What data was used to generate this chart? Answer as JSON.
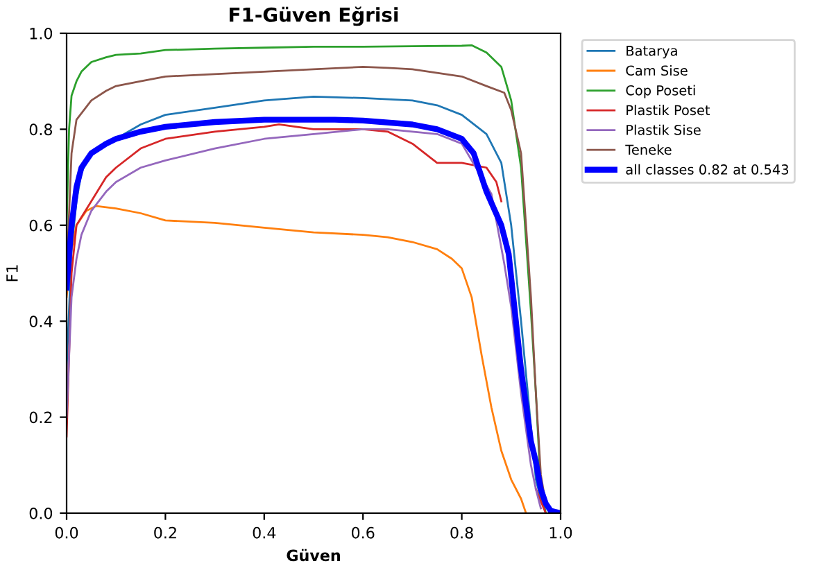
{
  "chart_data": {
    "type": "line",
    "title": "F1-Güven Eğrisi",
    "xlabel": "Güven",
    "ylabel": "F1",
    "xlim": [
      0.0,
      1.0
    ],
    "ylim": [
      0.0,
      1.0
    ],
    "xticks": [
      {
        "value": 0,
        "label": "0.0"
      },
      0.2,
      0.4,
      0.6,
      0.8,
      {
        "value": 1,
        "label": "1.0"
      }
    ],
    "yticks": [
      {
        "value": 0,
        "label": "0.0"
      },
      0.2,
      0.4,
      0.6,
      0.8,
      {
        "value": 1,
        "label": "1.0"
      }
    ],
    "grid": false,
    "legend": "top right",
    "marker": "none",
    "line_style": "solid",
    "series": [
      {
        "name": "Batarya",
        "color": "#1f77b4",
        "x": [
          0,
          0.01,
          0.02,
          0.03,
          0.05,
          0.08,
          0.1,
          0.15,
          0.2,
          0.3,
          0.4,
          0.5,
          0.6,
          0.7,
          0.75,
          0.8,
          0.85,
          0.88,
          0.9,
          0.92,
          0.94,
          0.95,
          0.96,
          0.98
        ],
        "values": [
          0.3,
          0.55,
          0.65,
          0.71,
          0.75,
          0.77,
          0.78,
          0.81,
          0.83,
          0.845,
          0.86,
          0.868,
          0.865,
          0.86,
          0.85,
          0.83,
          0.79,
          0.73,
          0.6,
          0.4,
          0.18,
          0.07,
          0.03,
          0.0
        ]
      },
      {
        "name": "Cam Sise",
        "color": "#ff7f0e",
        "x": [
          0,
          0.01,
          0.02,
          0.04,
          0.06,
          0.1,
          0.15,
          0.2,
          0.3,
          0.4,
          0.5,
          0.6,
          0.65,
          0.7,
          0.75,
          0.78,
          0.8,
          0.82,
          0.84,
          0.86,
          0.88,
          0.9,
          0.92,
          0.93
        ],
        "values": [
          0.45,
          0.55,
          0.6,
          0.63,
          0.64,
          0.635,
          0.625,
          0.61,
          0.605,
          0.595,
          0.585,
          0.58,
          0.575,
          0.565,
          0.55,
          0.53,
          0.51,
          0.45,
          0.33,
          0.22,
          0.13,
          0.07,
          0.03,
          0.0
        ]
      },
      {
        "name": "Cop Poseti",
        "color": "#2ca02c",
        "x": [
          0,
          0.005,
          0.01,
          0.02,
          0.03,
          0.05,
          0.08,
          0.1,
          0.15,
          0.2,
          0.3,
          0.4,
          0.5,
          0.6,
          0.7,
          0.8,
          0.82,
          0.85,
          0.88,
          0.9,
          0.92,
          0.94,
          0.95,
          0.96,
          0.97
        ],
        "values": [
          0.6,
          0.8,
          0.87,
          0.9,
          0.92,
          0.94,
          0.95,
          0.955,
          0.958,
          0.965,
          0.968,
          0.97,
          0.972,
          0.972,
          0.973,
          0.974,
          0.975,
          0.96,
          0.93,
          0.86,
          0.72,
          0.42,
          0.25,
          0.05,
          0.0
        ]
      },
      {
        "name": "Plastik Poset",
        "color": "#d62728",
        "x": [
          0,
          0.01,
          0.02,
          0.05,
          0.08,
          0.1,
          0.15,
          0.2,
          0.3,
          0.4,
          0.43,
          0.5,
          0.6,
          0.65,
          0.7,
          0.75,
          0.8,
          0.85,
          0.87,
          0.88,
          0.9,
          0.92,
          0.94,
          0.95,
          0.97
        ],
        "values": [
          0.16,
          0.5,
          0.6,
          0.65,
          0.7,
          0.72,
          0.76,
          0.78,
          0.795,
          0.805,
          0.81,
          0.8,
          0.8,
          0.795,
          0.77,
          0.73,
          0.73,
          0.72,
          0.69,
          0.65,
          null,
          null,
          null,
          0.05,
          0.0
        ]
      },
      {
        "name": "Plastik Sise",
        "color": "#9467bd",
        "x": [
          0,
          0.01,
          0.02,
          0.03,
          0.05,
          0.08,
          0.1,
          0.15,
          0.2,
          0.3,
          0.4,
          0.5,
          0.6,
          0.65,
          0.7,
          0.75,
          0.8,
          0.86,
          0.886,
          0.9,
          0.92,
          0.94,
          0.95,
          0.96
        ],
        "values": [
          0.2,
          0.45,
          0.53,
          0.58,
          0.63,
          0.67,
          0.69,
          0.72,
          0.735,
          0.76,
          0.78,
          0.79,
          0.8,
          0.8,
          0.795,
          0.79,
          0.77,
          0.665,
          0.52,
          0.43,
          0.25,
          0.1,
          0.05,
          0.01
        ]
      },
      {
        "name": "Teneke",
        "color": "#8c564b",
        "x": [
          0,
          0.01,
          0.02,
          0.05,
          0.08,
          0.1,
          0.15,
          0.2,
          0.3,
          0.4,
          0.5,
          0.6,
          0.65,
          0.7,
          0.8,
          0.85,
          0.886,
          0.9,
          0.92,
          0.94,
          0.95,
          0.96,
          0.97,
          0.98
        ],
        "values": [
          0.5,
          0.75,
          0.82,
          0.86,
          0.88,
          0.89,
          0.9,
          0.91,
          0.915,
          0.92,
          0.925,
          0.93,
          0.928,
          0.925,
          0.91,
          0.89,
          0.876,
          0.84,
          0.75,
          0.45,
          0.25,
          0.08,
          0.02,
          0.0
        ]
      },
      {
        "name": "all classes 0.82 at 0.543",
        "color": "#0000ff",
        "x": [
          0,
          0.01,
          0.02,
          0.03,
          0.05,
          0.08,
          0.1,
          0.15,
          0.2,
          0.3,
          0.4,
          0.543,
          0.6,
          0.7,
          0.75,
          0.8,
          0.824,
          0.85,
          0.88,
          0.895,
          0.92,
          0.94,
          0.95,
          0.96,
          0.97,
          0.98,
          1.0
        ],
        "values": [
          0.47,
          0.6,
          0.68,
          0.72,
          0.75,
          0.77,
          0.78,
          0.795,
          0.805,
          0.815,
          0.82,
          0.82,
          0.818,
          0.81,
          0.8,
          0.78,
          0.75,
          0.67,
          0.6,
          0.54,
          0.3,
          0.15,
          0.107,
          0.05,
          0.02,
          0.005,
          0.0
        ]
      }
    ]
  }
}
